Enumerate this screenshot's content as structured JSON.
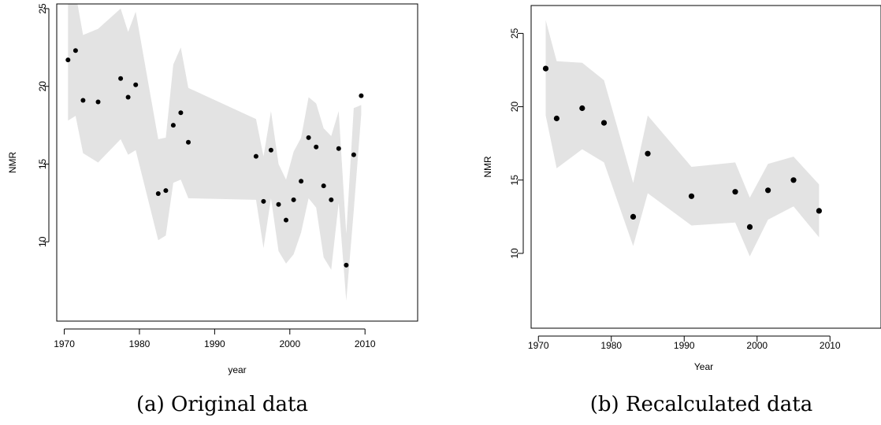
{
  "chart_data": [
    {
      "type": "scatter",
      "caption": "(a) Original data",
      "xlabel": "year",
      "ylabel": "NMR",
      "xlim": [
        1969,
        2017
      ],
      "ylim": [
        4.9,
        25.3
      ],
      "xticks": [
        1970,
        1980,
        1990,
        2000,
        2010
      ],
      "yticks": [
        10,
        15,
        20,
        25
      ],
      "band_color": "#e3e3e3",
      "point_color": "#000000",
      "points": [
        {
          "x": 1970.5,
          "y": 21.7
        },
        {
          "x": 1971.5,
          "y": 22.3
        },
        {
          "x": 1972.5,
          "y": 19.1
        },
        {
          "x": 1974.5,
          "y": 19.0
        },
        {
          "x": 1977.5,
          "y": 20.5
        },
        {
          "x": 1978.5,
          "y": 19.3
        },
        {
          "x": 1979.5,
          "y": 20.1
        },
        {
          "x": 1982.5,
          "y": 13.1
        },
        {
          "x": 1983.5,
          "y": 13.3
        },
        {
          "x": 1984.5,
          "y": 17.5
        },
        {
          "x": 1985.5,
          "y": 18.3
        },
        {
          "x": 1986.5,
          "y": 16.4
        },
        {
          "x": 1995.5,
          "y": 15.5
        },
        {
          "x": 1996.5,
          "y": 12.6
        },
        {
          "x": 1997.5,
          "y": 15.9
        },
        {
          "x": 1998.5,
          "y": 12.4
        },
        {
          "x": 1999.5,
          "y": 11.4
        },
        {
          "x": 2000.5,
          "y": 12.7
        },
        {
          "x": 2001.5,
          "y": 13.9
        },
        {
          "x": 2002.5,
          "y": 16.7
        },
        {
          "x": 2003.5,
          "y": 16.1
        },
        {
          "x": 2004.5,
          "y": 13.6
        },
        {
          "x": 2005.5,
          "y": 12.7
        },
        {
          "x": 2006.5,
          "y": 16.0
        },
        {
          "x": 2007.5,
          "y": 8.5
        },
        {
          "x": 2008.5,
          "y": 15.6
        },
        {
          "x": 2009.5,
          "y": 19.4
        }
      ],
      "band_upper": [
        {
          "x": 1970.5,
          "y": 26.5
        },
        {
          "x": 1971.5,
          "y": 26.0
        },
        {
          "x": 1972.5,
          "y": 23.3
        },
        {
          "x": 1974.5,
          "y": 23.7
        },
        {
          "x": 1977.5,
          "y": 25.0
        },
        {
          "x": 1978.5,
          "y": 23.5
        },
        {
          "x": 1979.5,
          "y": 24.8
        },
        {
          "x": 1982.5,
          "y": 16.6
        },
        {
          "x": 1983.5,
          "y": 16.7
        },
        {
          "x": 1984.5,
          "y": 21.4
        },
        {
          "x": 1985.5,
          "y": 22.5
        },
        {
          "x": 1986.5,
          "y": 19.9
        },
        {
          "x": 1995.5,
          "y": 17.9
        },
        {
          "x": 1996.5,
          "y": 15.5
        },
        {
          "x": 1997.5,
          "y": 18.4
        },
        {
          "x": 1998.5,
          "y": 15.0
        },
        {
          "x": 1999.5,
          "y": 14.0
        },
        {
          "x": 2000.5,
          "y": 15.8
        },
        {
          "x": 2001.5,
          "y": 16.7
        },
        {
          "x": 2002.5,
          "y": 19.3
        },
        {
          "x": 2003.5,
          "y": 18.9
        },
        {
          "x": 2004.5,
          "y": 17.3
        },
        {
          "x": 2005.5,
          "y": 16.8
        },
        {
          "x": 2006.5,
          "y": 18.4
        },
        {
          "x": 2007.5,
          "y": 10.5
        },
        {
          "x": 2008.5,
          "y": 18.6
        },
        {
          "x": 2009.5,
          "y": 18.8
        }
      ],
      "band_lower": [
        {
          "x": 1970.5,
          "y": 17.8
        },
        {
          "x": 1971.5,
          "y": 18.1
        },
        {
          "x": 1972.5,
          "y": 15.7
        },
        {
          "x": 1974.5,
          "y": 15.1
        },
        {
          "x": 1977.5,
          "y": 16.6
        },
        {
          "x": 1978.5,
          "y": 15.6
        },
        {
          "x": 1979.5,
          "y": 15.9
        },
        {
          "x": 1982.5,
          "y": 10.1
        },
        {
          "x": 1983.5,
          "y": 10.4
        },
        {
          "x": 1984.5,
          "y": 13.8
        },
        {
          "x": 1985.5,
          "y": 14.0
        },
        {
          "x": 1986.5,
          "y": 12.8
        },
        {
          "x": 1995.5,
          "y": 12.7
        },
        {
          "x": 1996.5,
          "y": 9.6
        },
        {
          "x": 1997.5,
          "y": 12.8
        },
        {
          "x": 1998.5,
          "y": 9.4
        },
        {
          "x": 1999.5,
          "y": 8.6
        },
        {
          "x": 2000.5,
          "y": 9.2
        },
        {
          "x": 2001.5,
          "y": 10.6
        },
        {
          "x": 2002.5,
          "y": 12.8
        },
        {
          "x": 2003.5,
          "y": 12.2
        },
        {
          "x": 2004.5,
          "y": 9.0
        },
        {
          "x": 2005.5,
          "y": 8.2
        },
        {
          "x": 2006.5,
          "y": 12.5
        },
        {
          "x": 2007.5,
          "y": 6.2
        },
        {
          "x": 2008.5,
          "y": 12.0
        },
        {
          "x": 2009.5,
          "y": 18.2
        }
      ]
    },
    {
      "type": "scatter",
      "caption": "(b) Recalculated data",
      "xlabel": "Year",
      "ylabel": "NMR",
      "xlim": [
        1969,
        2017
      ],
      "ylim": [
        4.9,
        26.9
      ],
      "xticks": [
        1970,
        1980,
        1990,
        2000,
        2010
      ],
      "yticks": [
        10,
        15,
        20,
        25
      ],
      "band_color": "#e3e3e3",
      "point_color": "#000000",
      "points": [
        {
          "x": 1971,
          "y": 22.6
        },
        {
          "x": 1972.5,
          "y": 19.2
        },
        {
          "x": 1976,
          "y": 19.9
        },
        {
          "x": 1979,
          "y": 18.9
        },
        {
          "x": 1983,
          "y": 12.5
        },
        {
          "x": 1985,
          "y": 16.8
        },
        {
          "x": 1991,
          "y": 13.9
        },
        {
          "x": 1997,
          "y": 14.2
        },
        {
          "x": 1999,
          "y": 11.8
        },
        {
          "x": 2001.5,
          "y": 14.3
        },
        {
          "x": 2005,
          "y": 15.0
        },
        {
          "x": 2008.5,
          "y": 12.9
        }
      ],
      "band_upper": [
        {
          "x": 1971,
          "y": 25.9
        },
        {
          "x": 1972.5,
          "y": 23.1
        },
        {
          "x": 1976,
          "y": 23.0
        },
        {
          "x": 1979,
          "y": 21.8
        },
        {
          "x": 1983,
          "y": 14.8
        },
        {
          "x": 1985,
          "y": 19.4
        },
        {
          "x": 1991,
          "y": 15.9
        },
        {
          "x": 1997,
          "y": 16.2
        },
        {
          "x": 1999,
          "y": 13.8
        },
        {
          "x": 2001.5,
          "y": 16.1
        },
        {
          "x": 2005,
          "y": 16.6
        },
        {
          "x": 2008.5,
          "y": 14.7
        }
      ],
      "band_lower": [
        {
          "x": 1971,
          "y": 19.4
        },
        {
          "x": 1972.5,
          "y": 15.8
        },
        {
          "x": 1976,
          "y": 17.1
        },
        {
          "x": 1979,
          "y": 16.2
        },
        {
          "x": 1983,
          "y": 10.5
        },
        {
          "x": 1985,
          "y": 14.1
        },
        {
          "x": 1991,
          "y": 11.9
        },
        {
          "x": 1997,
          "y": 12.1
        },
        {
          "x": 1999,
          "y": 9.8
        },
        {
          "x": 2001.5,
          "y": 12.3
        },
        {
          "x": 2005,
          "y": 13.2
        },
        {
          "x": 2008.5,
          "y": 11.1
        }
      ]
    }
  ]
}
